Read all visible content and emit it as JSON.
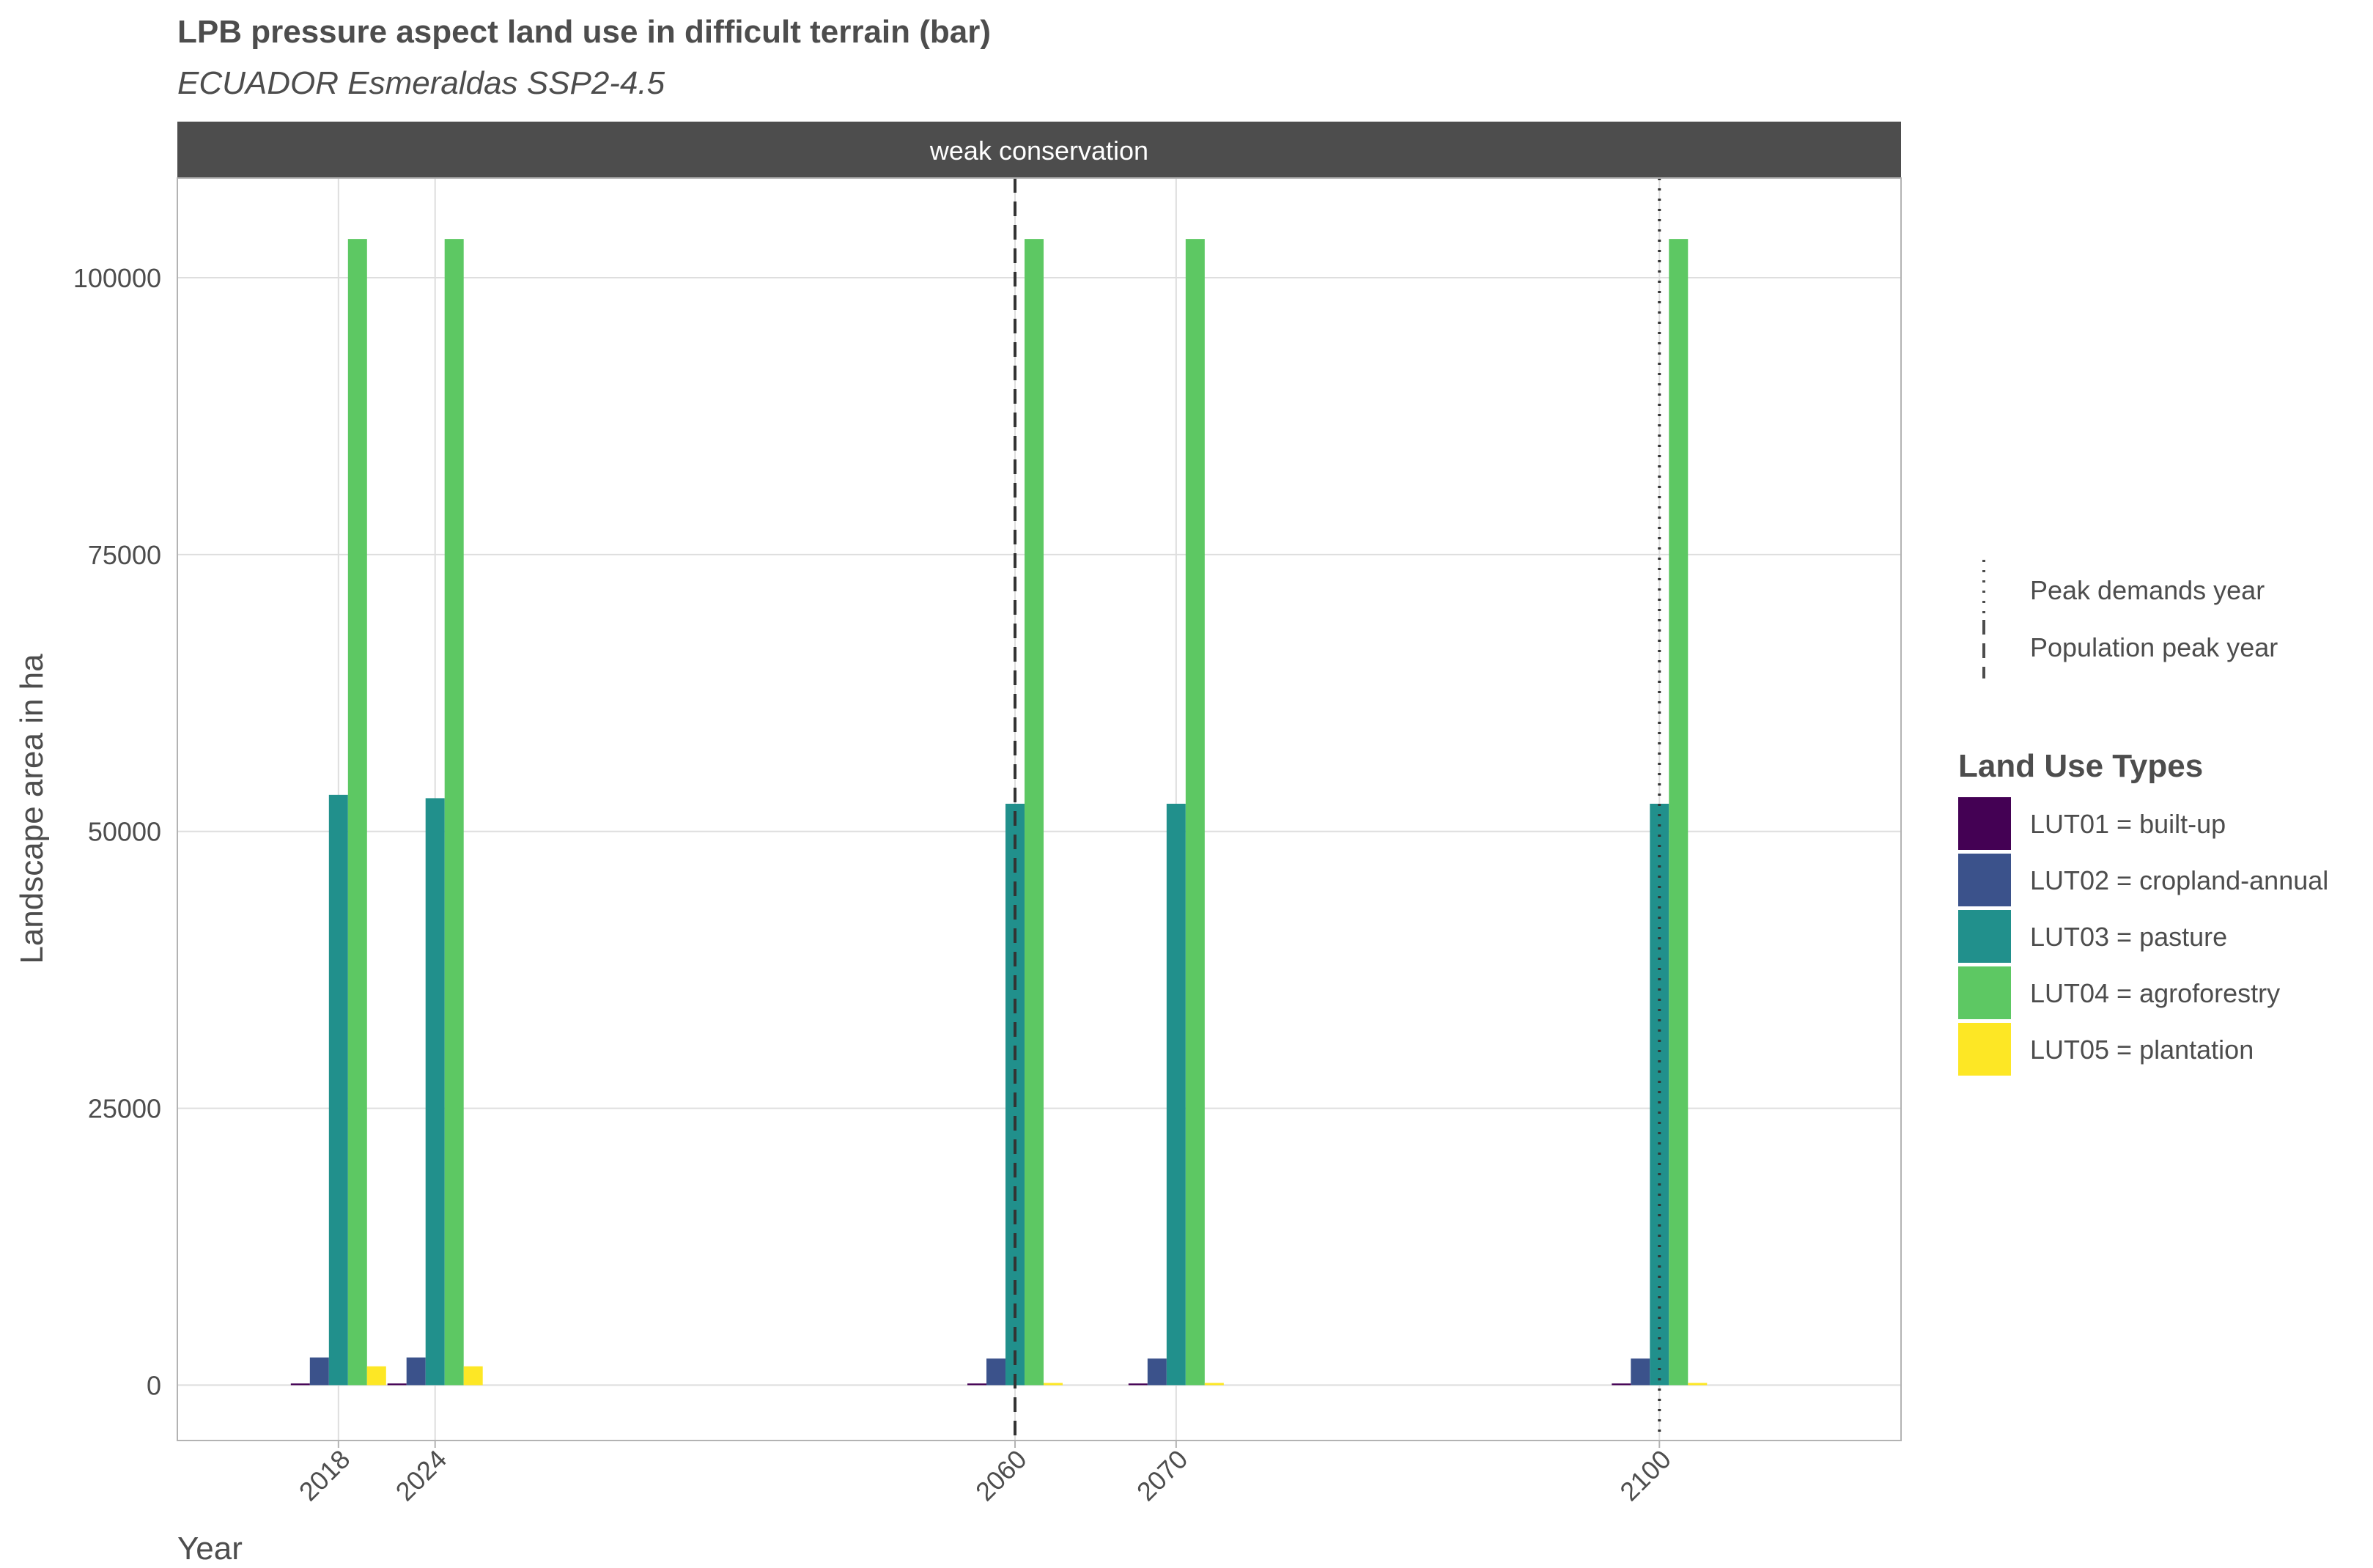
{
  "chart_data": {
    "type": "bar",
    "title": "LPB pressure aspect land use in difficult terrain (bar)",
    "subtitle": "ECUADOR Esmeraldas SSP2-4.5",
    "facet": "weak conservation",
    "xlabel": "Year",
    "ylabel": "Landscape area in ha",
    "x_range": [
      2008,
      2115
    ],
    "ylim": [
      -5000,
      109000
    ],
    "y_ticks": [
      0,
      25000,
      50000,
      75000,
      100000
    ],
    "x_ticks": [
      2018,
      2024,
      2060,
      2070,
      2100
    ],
    "grid": true,
    "colors": {
      "LUT01": "#440154",
      "LUT02": "#3b528b",
      "LUT03": "#21908c",
      "LUT04": "#5dc863",
      "LUT05": "#fde725"
    },
    "series": [
      {
        "name": "LUT01 = built-up",
        "key": "LUT01",
        "values": [
          150,
          150,
          150,
          150,
          150
        ]
      },
      {
        "name": "LUT02 = cropland-annual",
        "key": "LUT02",
        "values": [
          2500,
          2500,
          2400,
          2400,
          2400
        ]
      },
      {
        "name": "LUT03 = pasture",
        "key": "LUT03",
        "values": [
          53300,
          53000,
          52500,
          52500,
          52500
        ]
      },
      {
        "name": "LUT04 = agroforestry",
        "key": "LUT04",
        "values": [
          103500,
          103500,
          103500,
          103500,
          103500
        ]
      },
      {
        "name": "LUT05 = plantation",
        "key": "LUT05",
        "values": [
          1700,
          1700,
          200,
          200,
          200
        ]
      }
    ],
    "vlines": [
      {
        "name": "Population peak year",
        "x": 2060,
        "style": "dashed"
      },
      {
        "name": "Peak demands year",
        "x": 2100,
        "style": "dotted"
      }
    ],
    "legend": {
      "placement": "right",
      "line_entries": [
        "Peak demands year",
        "Population peak year"
      ],
      "fill_title": "Land Use Types"
    }
  }
}
